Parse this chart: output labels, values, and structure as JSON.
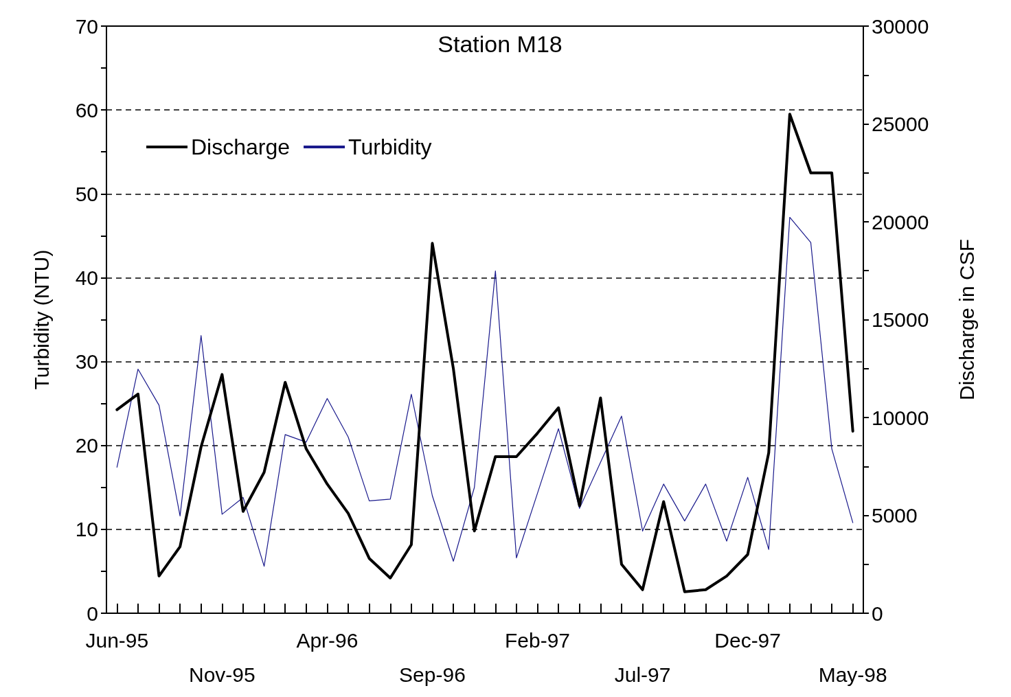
{
  "chart_data": {
    "type": "line",
    "title": "Station M18",
    "ylabel": "Turbidity (NTU)",
    "y2label": "Discharge in CSF",
    "categories": [
      "Jun-95",
      null,
      null,
      null,
      null,
      "Nov-95",
      null,
      null,
      null,
      null,
      "Apr-96",
      null,
      null,
      null,
      null,
      "Sep-96",
      null,
      null,
      null,
      null,
      "Feb-97",
      null,
      null,
      null,
      null,
      "Jul-97",
      null,
      null,
      null,
      null,
      "Dec-97",
      null,
      null,
      null,
      null,
      "May-98"
    ],
    "series": [
      {
        "name": "Discharge",
        "color": "#000000",
        "axis": "y2",
        "values": [
          10400,
          11200,
          1900,
          3400,
          8500,
          12200,
          5200,
          7200,
          11800,
          8400,
          6600,
          5100,
          2800,
          1800,
          3500,
          18900,
          12500,
          4200,
          8000,
          8000,
          9200,
          10500,
          5500,
          11000,
          2500,
          1200,
          5700,
          1100,
          1200,
          1900,
          3000,
          8200,
          25500,
          22500,
          22500,
          9300
        ]
      },
      {
        "name": "Turbidity",
        "color": "#1a1a8c",
        "values": [
          17.4,
          29.1,
          24.8,
          11.6,
          33.1,
          11.8,
          13.8,
          5.6,
          21.3,
          20.4,
          25.6,
          21.0,
          13.4,
          13.6,
          26.1,
          14,
          6.2,
          15,
          40.8,
          6.6,
          14.3,
          22.0,
          12.5,
          18,
          23.5,
          9.8,
          15.4,
          11.0,
          15.4,
          8.6,
          16.2,
          7.6,
          47.2,
          44.2,
          19.6,
          10.8
        ]
      }
    ],
    "ylim": [
      0,
      70
    ],
    "yticks": [
      0,
      10,
      20,
      30,
      40,
      50,
      60,
      70
    ],
    "y2lim": [
      0,
      30000
    ],
    "y2ticks": [
      0,
      5000,
      10000,
      15000,
      20000,
      25000,
      30000
    ],
    "grid": "y",
    "legend": "top left",
    "marker": "none"
  }
}
